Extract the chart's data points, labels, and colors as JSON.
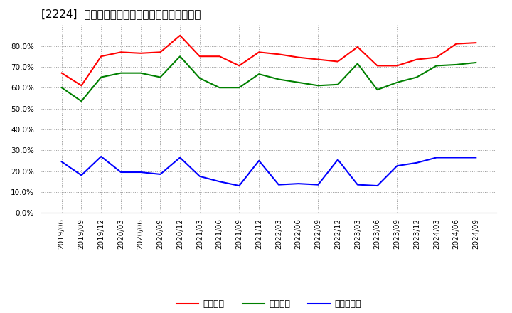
{
  "title": "[2224]  流動比率、当座比率、現預金比率の推移",
  "x_labels": [
    "2019/06",
    "2019/09",
    "2019/12",
    "2020/03",
    "2020/06",
    "2020/09",
    "2020/12",
    "2021/03",
    "2021/06",
    "2021/09",
    "2021/12",
    "2022/03",
    "2022/06",
    "2022/09",
    "2022/12",
    "2023/03",
    "2023/06",
    "2023/09",
    "2023/12",
    "2024/03",
    "2024/06",
    "2024/09"
  ],
  "ryudo": [
    67.0,
    61.0,
    75.0,
    77.0,
    76.5,
    77.0,
    85.0,
    75.0,
    75.0,
    70.5,
    77.0,
    76.0,
    74.5,
    73.5,
    72.5,
    79.5,
    70.5,
    70.5,
    73.5,
    74.5,
    81.0,
    81.5
  ],
  "toza": [
    60.0,
    53.5,
    65.0,
    67.0,
    67.0,
    65.0,
    75.0,
    64.5,
    60.0,
    60.0,
    66.5,
    64.0,
    62.5,
    61.0,
    61.5,
    71.5,
    59.0,
    62.5,
    65.0,
    70.5,
    71.0,
    72.0
  ],
  "genkin": [
    24.5,
    18.0,
    27.0,
    19.5,
    19.5,
    18.5,
    26.5,
    17.5,
    15.0,
    13.0,
    25.0,
    13.5,
    14.0,
    13.5,
    25.5,
    13.5,
    13.0,
    22.5,
    24.0,
    26.5,
    26.5,
    26.5
  ],
  "ryudo_color": "#ff0000",
  "toza_color": "#008000",
  "genkin_color": "#0000ff",
  "legend_labels": [
    "流動比率",
    "当座比率",
    "現預金比率"
  ],
  "ylim": [
    0.0,
    90.0
  ],
  "yticks": [
    0.0,
    10.0,
    20.0,
    30.0,
    40.0,
    50.0,
    60.0,
    70.0,
    80.0
  ],
  "bg_color": "#ffffff",
  "grid_color": "#999999",
  "title_fontsize": 11,
  "axis_fontsize": 7.5,
  "legend_fontsize": 9
}
